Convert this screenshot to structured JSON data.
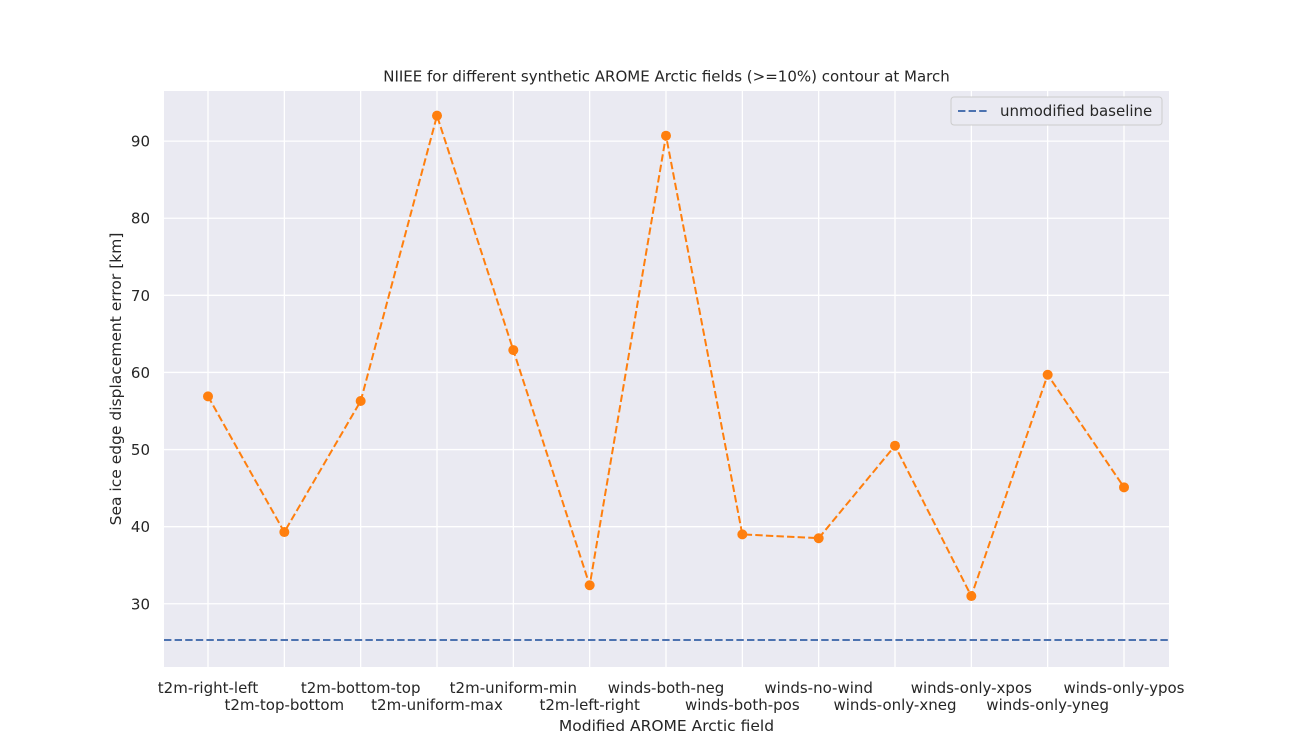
{
  "chart_data": {
    "type": "line",
    "title": "NIIEE for different synthetic AROME Arctic fields (>=10%) contour at March",
    "xlabel": "Modified AROME Arctic field",
    "ylabel": "Sea ice edge displacement error [km]",
    "categories": [
      "t2m-right-left",
      "t2m-top-bottom",
      "t2m-bottom-top",
      "t2m-uniform-max",
      "t2m-uniform-min",
      "t2m-left-right",
      "winds-both-neg",
      "winds-both-pos",
      "winds-no-wind",
      "winds-only-xneg",
      "winds-only-xpos",
      "winds-only-yneg",
      "winds-only-ypos"
    ],
    "series": [
      {
        "values": [
          56.9,
          39.3,
          56.3,
          93.3,
          62.9,
          32.4,
          90.7,
          39.0,
          38.5,
          50.5,
          31.0,
          59.7,
          45.1
        ],
        "color": "#ff7f0e",
        "style": "dashed-with-markers"
      },
      {
        "name": "unmodified baseline",
        "constant": 25.3,
        "color": "#4c72b0",
        "style": "dashed"
      }
    ],
    "yticks": [
      30,
      40,
      50,
      60,
      70,
      80,
      90
    ],
    "ylim": [
      21.8,
      96.5
    ],
    "grid": true,
    "legend_position": "top-right",
    "background": "#eaeaf2"
  }
}
